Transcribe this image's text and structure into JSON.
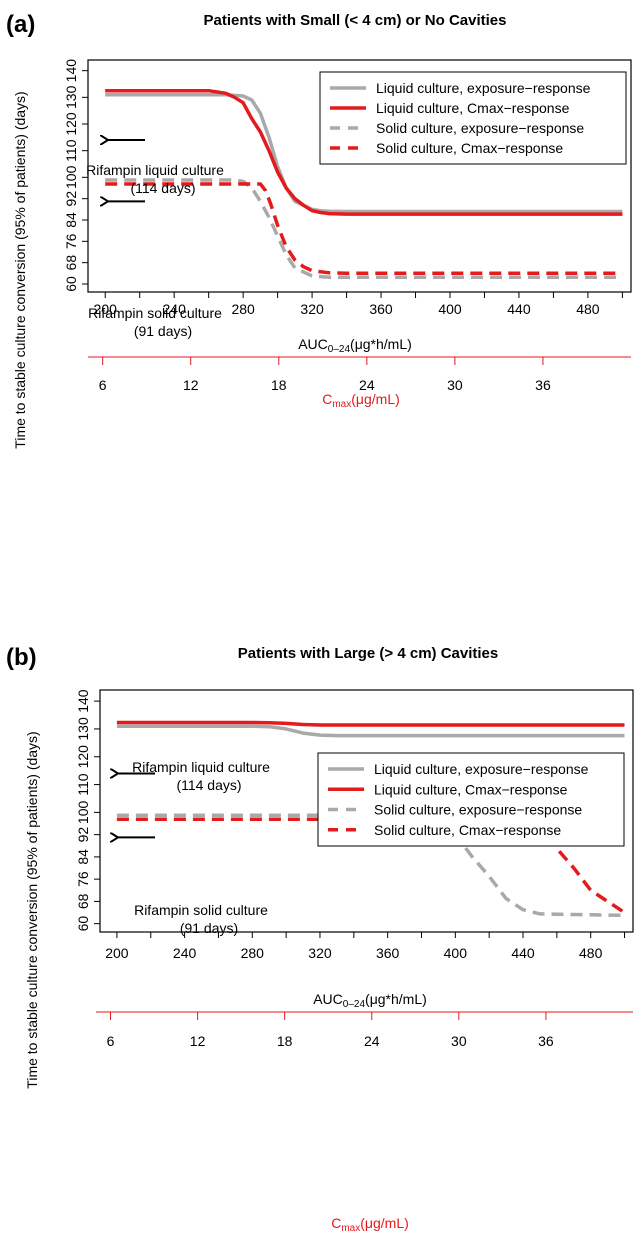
{
  "figure": {
    "colors": {
      "gray": "#a9a9a9",
      "red": "#e41a1c",
      "black": "#000000"
    }
  },
  "chart_data": [
    {
      "panel_label": "(a)",
      "type": "line",
      "title": "Patients with Small (< 4 cm) or No Cavities",
      "ylabel": "Time to stable culture conversion (95% of patients) (days)",
      "xlabel_prefix": "AUC",
      "xlabel_sub": "0–24",
      "xlabel_suffix": "(μg*h/mL)",
      "x2label_prefix": "C",
      "x2label_sub": "max",
      "x2label_suffix": "(μg/mL)",
      "xlim": [
        190,
        505
      ],
      "ylim": [
        57,
        144
      ],
      "x_ticks": [
        "200",
        "240",
        "280",
        "320",
        "360",
        "400",
        "440",
        "480"
      ],
      "x_tick_values": [
        200,
        240,
        280,
        320,
        360,
        400,
        440,
        480
      ],
      "y_ticks": [
        "60",
        "68",
        "76",
        "84",
        "92",
        "100",
        "110",
        "120",
        "130",
        "140"
      ],
      "y_tick_values": [
        60,
        68,
        76,
        84,
        92,
        100,
        110,
        120,
        130,
        140
      ],
      "x2_ticks": [
        "6",
        "12",
        "18",
        "24",
        "30",
        "36"
      ],
      "x2_tick_values": [
        6,
        12,
        18,
        24,
        30,
        36
      ],
      "x2_range": [
        5,
        42
      ],
      "legend_position": "top-right",
      "series": [
        {
          "name": "Liquid culture, exposure−response",
          "color": "#a9a9a9",
          "dash": "solid",
          "x": [
            200,
            240,
            270,
            280,
            285,
            290,
            295,
            300,
            305,
            310,
            320,
            325,
            330,
            340,
            360,
            400,
            440,
            480,
            500
          ],
          "y": [
            131,
            131,
            131,
            130.5,
            129,
            124,
            115,
            104,
            96,
            91,
            88,
            87.5,
            87.3,
            87.2,
            87.2,
            87.2,
            87.2,
            87.2,
            87.2
          ]
        },
        {
          "name": "Liquid culture, Cmax−response",
          "color": "#e41a1c",
          "dash": "solid",
          "x": [
            200,
            240,
            260,
            270,
            275,
            280,
            285,
            290,
            295,
            300,
            305,
            310,
            315,
            320,
            325,
            330,
            340,
            360,
            400,
            440,
            480,
            500
          ],
          "y": [
            132.5,
            132.5,
            132.5,
            131.5,
            130,
            128,
            122,
            117,
            110,
            102,
            96,
            92,
            89.5,
            87.5,
            86.8,
            86.4,
            86.2,
            86.2,
            86.2,
            86.2,
            86.2,
            86.2
          ]
        },
        {
          "name": "Solid culture, exposure−response",
          "color": "#a9a9a9",
          "dash": "dashed",
          "x": [
            200,
            240,
            275,
            280,
            285,
            290,
            295,
            300,
            305,
            310,
            320,
            330,
            340,
            360,
            400,
            440,
            480,
            500
          ],
          "y": [
            99,
            99,
            99,
            98.5,
            96,
            91,
            85,
            78,
            71,
            66,
            63,
            62.5,
            62.5,
            62.5,
            62.5,
            62.5,
            62.5,
            62.5
          ]
        },
        {
          "name": "Solid culture, Cmax−response",
          "color": "#e41a1c",
          "dash": "dashed",
          "x": [
            200,
            240,
            280,
            290,
            293,
            296,
            300,
            305,
            310,
            315,
            320,
            330,
            340,
            360,
            400,
            440,
            480,
            500
          ],
          "y": [
            97.5,
            97.5,
            97.5,
            97.5,
            95,
            90,
            82,
            74,
            69,
            66.5,
            65,
            64.2,
            64,
            64,
            64,
            64,
            64,
            64
          ]
        }
      ],
      "annotations": [
        {
          "line1": "Rifampin liquid culture",
          "line2": "(114 days)",
          "arrow_y": 114
        },
        {
          "line1": "Rifampin solid culture",
          "line2": "(91 days)",
          "arrow_y": 91
        }
      ]
    },
    {
      "panel_label": "(b)",
      "type": "line",
      "title": "Patients with Large (> 4 cm)  Cavities",
      "ylabel": "Time to stable culture conversion (95% of patients) (days)",
      "xlabel_prefix": "AUC",
      "xlabel_sub": "0–24",
      "xlabel_suffix": "(μg*h/mL)",
      "x2label_prefix": "C",
      "x2label_sub": "max",
      "x2label_suffix": "(μg/mL)",
      "xlim": [
        190,
        505
      ],
      "ylim": [
        57,
        144
      ],
      "x_ticks": [
        "200",
        "240",
        "280",
        "320",
        "360",
        "400",
        "440",
        "480"
      ],
      "x_tick_values": [
        200,
        240,
        280,
        320,
        360,
        400,
        440,
        480
      ],
      "y_ticks": [
        "60",
        "68",
        "76",
        "84",
        "92",
        "100",
        "110",
        "120",
        "130",
        "140"
      ],
      "y_tick_values": [
        60,
        68,
        76,
        84,
        92,
        100,
        110,
        120,
        130,
        140
      ],
      "x2_ticks": [
        "6",
        "12",
        "18",
        "24",
        "30",
        "36"
      ],
      "x2_tick_values": [
        6,
        12,
        18,
        24,
        30,
        36
      ],
      "x2_range": [
        5,
        42
      ],
      "legend_position": "right",
      "series": [
        {
          "name": "Liquid culture, exposure−response",
          "color": "#a9a9a9",
          "dash": "solid",
          "x": [
            200,
            240,
            280,
            290,
            300,
            310,
            320,
            330,
            360,
            400,
            440,
            480,
            500
          ],
          "y": [
            131,
            131,
            131,
            130.8,
            130,
            128.5,
            127.8,
            127.6,
            127.6,
            127.6,
            127.6,
            127.6,
            127.6
          ]
        },
        {
          "name": "Liquid culture, Cmax−response",
          "color": "#e41a1c",
          "dash": "solid",
          "x": [
            200,
            240,
            280,
            290,
            300,
            310,
            320,
            360,
            400,
            440,
            480,
            500
          ],
          "y": [
            132.3,
            132.3,
            132.3,
            132.2,
            132,
            131.6,
            131.4,
            131.4,
            131.4,
            131.4,
            131.4,
            131.4
          ]
        },
        {
          "name": "Solid culture, exposure−response",
          "color": "#a9a9a9",
          "dash": "dashed",
          "x": [
            200,
            240,
            280,
            320,
            360,
            380,
            390,
            400,
            410,
            420,
            430,
            440,
            450,
            460,
            480,
            500
          ],
          "y": [
            99,
            99,
            99,
            99,
            99,
            98.7,
            97,
            92,
            84,
            77,
            69,
            65,
            63.5,
            63.4,
            63.2,
            63
          ]
        },
        {
          "name": "Solid culture, Cmax−response",
          "color": "#e41a1c",
          "dash": "dashed",
          "x": [
            200,
            240,
            280,
            320,
            360,
            380,
            400,
            420,
            440,
            450,
            460,
            470,
            480,
            490,
            500
          ],
          "y": [
            97.5,
            97.5,
            97.5,
            97.5,
            97.5,
            97.5,
            97.5,
            97.5,
            96.5,
            95.5,
            87,
            80,
            72,
            68,
            64
          ]
        }
      ],
      "annotations": [
        {
          "line1": "Rifampin liquid culture",
          "line2": "(114 days)",
          "arrow_y": 114
        },
        {
          "line1": "Rifampin solid culture",
          "line2": "(91 days)",
          "arrow_y": 91
        }
      ]
    }
  ]
}
